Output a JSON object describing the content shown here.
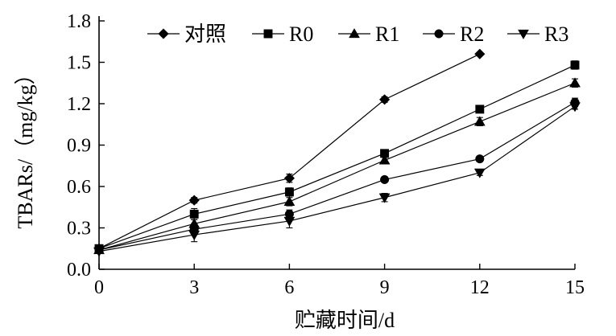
{
  "chart_data": {
    "type": "line",
    "title": "",
    "xlabel": "贮藏时间/d",
    "ylabel": "TBARs/（mg/kg）",
    "x": [
      0,
      3,
      6,
      9,
      12,
      15
    ],
    "xlim": [
      0,
      15
    ],
    "ylim": [
      0,
      1.8
    ],
    "xticks": [
      "0",
      "3",
      "6",
      "9",
      "12",
      "15"
    ],
    "yticks": [
      "0.0",
      "0.3",
      "0.6",
      "0.9",
      "1.2",
      "1.5",
      "1.8"
    ],
    "grid": false,
    "legend_position": "top",
    "series": [
      {
        "name": "对照",
        "marker": "diamond",
        "values": [
          0.15,
          0.5,
          0.66,
          1.23,
          1.56,
          null
        ],
        "errors": [
          0.01,
          0.02,
          0.03,
          0.02,
          0.01,
          null
        ]
      },
      {
        "name": "R0",
        "marker": "square",
        "values": [
          0.15,
          0.4,
          0.56,
          0.84,
          1.16,
          1.48
        ],
        "errors": [
          0.01,
          0.04,
          0.03,
          0.02,
          0.02,
          0.03
        ]
      },
      {
        "name": "R1",
        "marker": "triangle-up",
        "values": [
          0.14,
          0.33,
          0.49,
          0.79,
          1.07,
          1.35
        ],
        "errors": [
          0.01,
          0.03,
          0.03,
          0.02,
          0.03,
          0.03
        ]
      },
      {
        "name": "R2",
        "marker": "circle",
        "values": [
          0.14,
          0.29,
          0.4,
          0.65,
          0.8,
          1.21
        ],
        "errors": [
          0.01,
          0.04,
          0.03,
          0.02,
          0.02,
          0.03
        ]
      },
      {
        "name": "R3",
        "marker": "triangle-down",
        "values": [
          0.13,
          0.25,
          0.35,
          0.52,
          0.7,
          1.18
        ],
        "errors": [
          0.01,
          0.05,
          0.05,
          0.03,
          0.02,
          0.02
        ]
      }
    ]
  }
}
